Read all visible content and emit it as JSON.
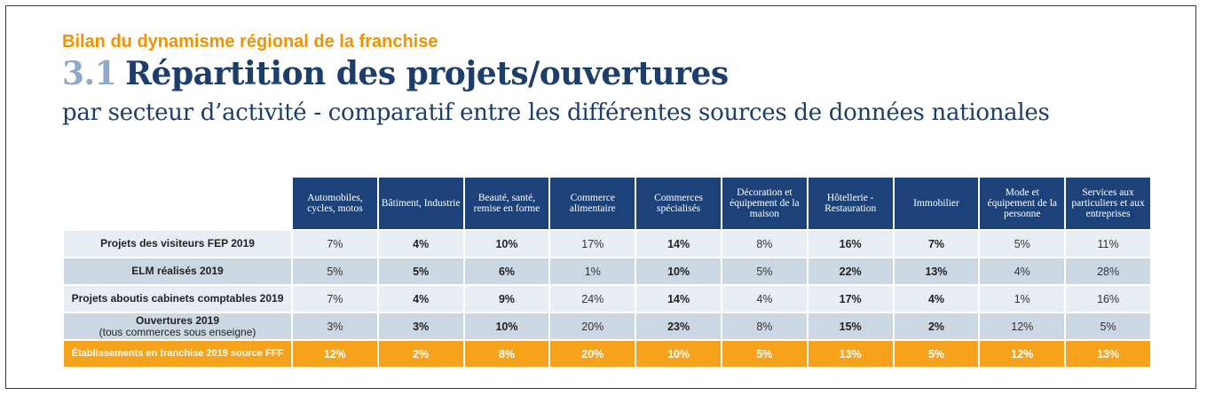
{
  "kicker": "Bilan du dynamisme régional de la franchise",
  "title": {
    "number": "3.1",
    "text": "Répartition des projets/ouvertures"
  },
  "subtitle": "par secteur d’activité - comparatif entre les différentes sources de données nationales",
  "table": {
    "columns": [
      "Automobiles, cycles, motos",
      "Bâtiment, Industrie",
      "Beauté, santé, remise en forme",
      "Commerce alimentaire",
      "Commerces spécialisés",
      "Décoration et équipement de la maison",
      "Hôtellerie - Restauration",
      "Immobilier",
      "Mode et équipement de la personne",
      "Services aux particuliers et aux entreprises"
    ],
    "rows": [
      {
        "label": "Projets des visiteurs FEP 2019",
        "sublabel": "",
        "values": [
          "7%",
          "4%",
          "10%",
          "17%",
          "14%",
          "8%",
          "16%",
          "7%",
          "5%",
          "11%"
        ],
        "bold": [
          false,
          true,
          true,
          false,
          true,
          false,
          true,
          true,
          false,
          false
        ]
      },
      {
        "label": "ELM réalisés 2019",
        "sublabel": "",
        "values": [
          "5%",
          "5%",
          "6%",
          "1%",
          "10%",
          "5%",
          "22%",
          "13%",
          "4%",
          "28%"
        ],
        "bold": [
          false,
          true,
          true,
          false,
          true,
          false,
          true,
          true,
          false,
          false
        ]
      },
      {
        "label": "Projets aboutis cabinets comptables 2019",
        "sublabel": "",
        "values": [
          "7%",
          "4%",
          "9%",
          "24%",
          "14%",
          "4%",
          "17%",
          "4%",
          "1%",
          "16%"
        ],
        "bold": [
          false,
          true,
          true,
          false,
          true,
          false,
          true,
          true,
          false,
          false
        ]
      },
      {
        "label": "Ouvertures 2019",
        "sublabel": "(tous commerces sous enseigne)",
        "values": [
          "3%",
          "3%",
          "10%",
          "20%",
          "23%",
          "8%",
          "15%",
          "2%",
          "12%",
          "5%"
        ],
        "bold": [
          false,
          true,
          true,
          false,
          true,
          false,
          true,
          true,
          false,
          false
        ]
      },
      {
        "label": "Établissements en franchise 2019 source FFF",
        "sublabel": "",
        "values": [
          "12%",
          "2%",
          "8%",
          "20%",
          "10%",
          "5%",
          "13%",
          "5%",
          "12%",
          "13%"
        ],
        "bold": [
          true,
          true,
          true,
          true,
          true,
          true,
          true,
          true,
          true,
          true
        ]
      }
    ],
    "colors": {
      "header": "#1d4279",
      "row_light": "#e8edf4",
      "row_dark": "#ccd7e4",
      "highlight": "#f7a21b",
      "kicker": "#f39200",
      "title": "#1d3d6b"
    }
  }
}
